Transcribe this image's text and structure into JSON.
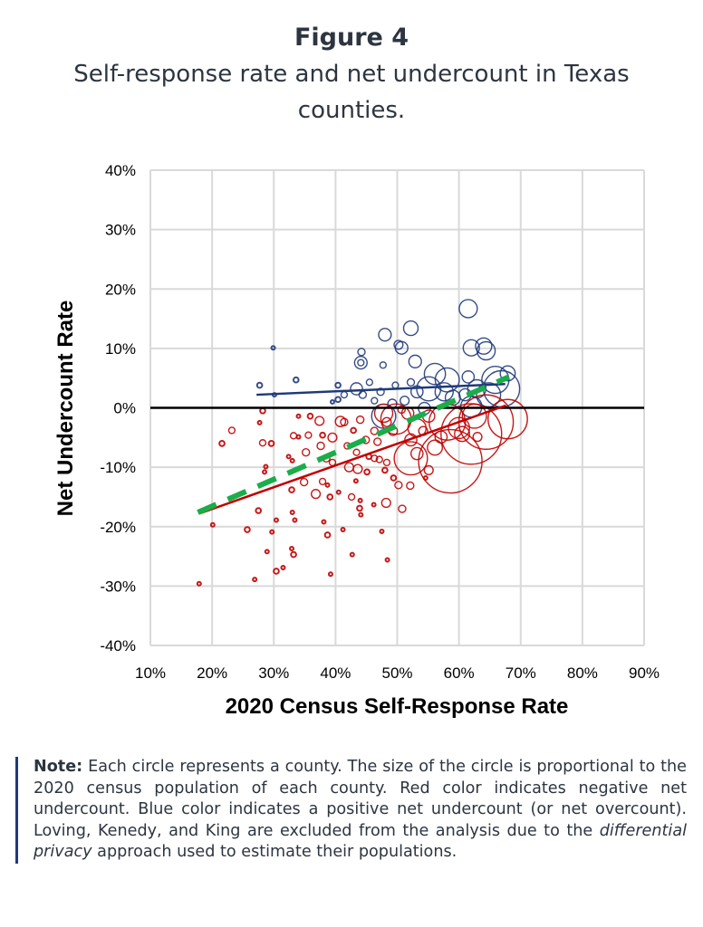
{
  "figure": {
    "label": "Figure 4",
    "subtitle": "Self-response rate and net undercount in Texas counties."
  },
  "note": {
    "label": "Note:",
    "text_before": " Each circle represents a county. The size of the circle is proportional to the 2020 census population of each county. Red color indicates negative net undercount. Blue color indicates a positive net undercount (or net overcount). Loving, Kenedy, and King are excluded from the analysis due to the ",
    "emphasis": "differential privacy",
    "text_after": " approach used to estimate their populations."
  },
  "colors": {
    "negative": "#c00000",
    "positive": "#1f3a7a",
    "overall_trend": "#1aad4a",
    "zero_line": "#000000",
    "grid": "#d9d9d9",
    "text": "#2d3540"
  },
  "chart_data": {
    "type": "scatter",
    "title": "",
    "xlabel": "2020 Census Self-Response Rate",
    "ylabel": "Net Undercount Rate",
    "xlim": [
      10,
      90
    ],
    "ylim": [
      -40,
      40
    ],
    "x_ticks": [
      "10%",
      "20%",
      "30%",
      "40%",
      "50%",
      "60%",
      "70%",
      "80%",
      "90%"
    ],
    "y_ticks": [
      "40%",
      "30%",
      "20%",
      "10%",
      "0%",
      "-10%",
      "-20%",
      "-30%",
      "-40%"
    ],
    "grid": true,
    "bubble_size": "relative county population (2020 census)",
    "point_format": [
      "self_response_rate_pct",
      "net_undercount_rate_pct",
      "relative_population"
    ],
    "series": [
      {
        "group": "positive",
        "color": "#1f3a7a",
        "points": [
          [
            61.5,
            16.7,
            25
          ],
          [
            52.2,
            13.4,
            16
          ],
          [
            48.0,
            12.3,
            12
          ],
          [
            50.7,
            10.1,
            12
          ],
          [
            50.2,
            10.6,
            6
          ],
          [
            62.0,
            10.1,
            20
          ],
          [
            64.4,
            9.6,
            25
          ],
          [
            64.0,
            10.4,
            20
          ],
          [
            44.2,
            9.4,
            4
          ],
          [
            44.1,
            7.6,
            12
          ],
          [
            44.1,
            7.6,
            3
          ],
          [
            52.9,
            7.8,
            12
          ],
          [
            47.7,
            7.2,
            3
          ],
          [
            29.9,
            10.1,
            1
          ],
          [
            27.7,
            3.8,
            2
          ],
          [
            33.6,
            4.7,
            2
          ],
          [
            40.4,
            3.8,
            2
          ],
          [
            30.1,
            2.2,
            1
          ],
          [
            39.5,
            1.0,
            1
          ],
          [
            56.1,
            5.7,
            34
          ],
          [
            58.1,
            4.7,
            44
          ],
          [
            55.1,
            3.2,
            44
          ],
          [
            66.9,
            3.2,
            100
          ],
          [
            65.9,
            4.7,
            56
          ],
          [
            61.5,
            5.2,
            11
          ],
          [
            64.8,
            2.2,
            44
          ],
          [
            47.8,
            -1.4,
            44
          ],
          [
            67.9,
            5.8,
            17
          ],
          [
            62.9,
            3.2,
            25
          ],
          [
            43.4,
            3.2,
            11
          ],
          [
            45.5,
            4.3,
            3
          ],
          [
            41.4,
            2.2,
            3
          ],
          [
            44.4,
            2.2,
            4
          ],
          [
            47.3,
            2.7,
            4
          ],
          [
            49.7,
            3.8,
            3
          ],
          [
            52.2,
            4.3,
            4
          ],
          [
            53.2,
            2.7,
            11
          ],
          [
            51.2,
            1.2,
            6
          ],
          [
            59.0,
            1.7,
            17
          ],
          [
            61.0,
            2.2,
            11
          ],
          [
            57.6,
            2.7,
            25
          ],
          [
            40.4,
            1.4,
            2
          ],
          [
            46.3,
            1.2,
            3
          ],
          [
            49.2,
            0.7,
            6
          ],
          [
            54.4,
            -0.1,
            11
          ],
          [
            62.0,
            0.2,
            34
          ]
        ]
      },
      {
        "group": "negative",
        "color": "#c00000",
        "points": [
          [
            17.9,
            -29.6,
            1
          ],
          [
            26.9,
            -28.9,
            1
          ],
          [
            30.4,
            -27.5,
            2
          ],
          [
            31.5,
            -26.9,
            1
          ],
          [
            39.2,
            -28.0,
            1
          ],
          [
            28.9,
            -24.2,
            1
          ],
          [
            33.2,
            -24.7,
            2
          ],
          [
            32.9,
            -23.7,
            1
          ],
          [
            42.7,
            -24.7,
            1
          ],
          [
            48.4,
            -25.6,
            1
          ],
          [
            25.7,
            -20.5,
            2
          ],
          [
            29.7,
            -20.9,
            1
          ],
          [
            38.7,
            -21.4,
            2
          ],
          [
            41.2,
            -20.5,
            1
          ],
          [
            47.5,
            -20.8,
            1
          ],
          [
            20.1,
            -19.7,
            1
          ],
          [
            30.4,
            -18.9,
            1
          ],
          [
            33.4,
            -18.9,
            1
          ],
          [
            38.1,
            -19.2,
            1
          ],
          [
            27.5,
            -17.3,
            2
          ],
          [
            33.0,
            -17.6,
            1
          ],
          [
            48.2,
            -16.0,
            6
          ],
          [
            50.8,
            -17.0,
            4
          ],
          [
            43.9,
            -16.9,
            2
          ],
          [
            44.1,
            -18.0,
            1
          ],
          [
            46.2,
            -16.3,
            1
          ],
          [
            36.8,
            -14.5,
            6
          ],
          [
            39.1,
            -15.0,
            2
          ],
          [
            40.5,
            -14.2,
            1
          ],
          [
            42.6,
            -15.0,
            3
          ],
          [
            44.0,
            -15.6,
            1
          ],
          [
            32.9,
            -13.8,
            2
          ],
          [
            34.9,
            -12.5,
            4
          ],
          [
            37.9,
            -12.4,
            3
          ],
          [
            38.7,
            -13.0,
            1
          ],
          [
            32.4,
            -8.2,
            1
          ],
          [
            33.0,
            -8.9,
            1
          ],
          [
            35.2,
            -7.5,
            4
          ],
          [
            28.7,
            -9.9,
            1
          ],
          [
            28.5,
            -10.8,
            1
          ],
          [
            28.2,
            -5.9,
            3
          ],
          [
            29.6,
            -6.0,
            2
          ],
          [
            21.6,
            -6.0,
            2
          ],
          [
            23.2,
            -3.8,
            3
          ],
          [
            27.7,
            -2.5,
            1
          ],
          [
            28.2,
            -0.5,
            2
          ],
          [
            34.0,
            -1.4,
            1
          ],
          [
            35.9,
            -1.4,
            2
          ],
          [
            37.4,
            -2.2,
            6
          ],
          [
            40.8,
            -2.3,
            8
          ],
          [
            41.4,
            -2.4,
            4
          ],
          [
            44.0,
            -2.0,
            4
          ],
          [
            33.2,
            -4.7,
            3
          ],
          [
            34.0,
            -4.9,
            1
          ],
          [
            35.6,
            -4.6,
            3
          ],
          [
            37.9,
            -4.6,
            2
          ],
          [
            39.5,
            -5.0,
            6
          ],
          [
            42.9,
            -3.8,
            2
          ],
          [
            37.6,
            -6.4,
            4
          ],
          [
            38.5,
            -8.5,
            4
          ],
          [
            39.5,
            -9.2,
            3
          ],
          [
            41.9,
            -6.4,
            3
          ],
          [
            43.4,
            -7.5,
            3
          ],
          [
            45.4,
            -8.2,
            2
          ],
          [
            42.2,
            -10.0,
            6
          ],
          [
            43.6,
            -10.3,
            6
          ],
          [
            45.1,
            -10.8,
            2
          ],
          [
            46.3,
            -8.5,
            3
          ],
          [
            47.1,
            -8.7,
            3
          ],
          [
            48.3,
            -9.2,
            3
          ],
          [
            48.0,
            -10.5,
            2
          ],
          [
            43.3,
            -12.3,
            1
          ],
          [
            49.4,
            -11.8,
            2
          ],
          [
            50.2,
            -13.0,
            4
          ],
          [
            52.1,
            -13.1,
            4
          ],
          [
            54.6,
            -11.8,
            1
          ],
          [
            58.6,
            -9.0,
            306
          ],
          [
            62.0,
            -4.4,
            280
          ],
          [
            64.4,
            -2.4,
            225
          ],
          [
            67.9,
            -1.9,
            118
          ],
          [
            52.2,
            -8.5,
            84
          ],
          [
            58.1,
            -2.4,
            100
          ],
          [
            49.8,
            -1.9,
            70
          ],
          [
            56.1,
            -6.7,
            17
          ],
          [
            53.2,
            -3.4,
            25
          ],
          [
            47.8,
            -0.9,
            25
          ],
          [
            60.0,
            -3.4,
            34
          ],
          [
            51.7,
            -0.9,
            11
          ],
          [
            62.5,
            -1.4,
            44
          ],
          [
            48.3,
            -2.4,
            6
          ],
          [
            49.3,
            -3.9,
            6
          ],
          [
            50.7,
            -0.3,
            4
          ],
          [
            52.2,
            -5.4,
            11
          ],
          [
            54.2,
            -3.9,
            6
          ],
          [
            55.1,
            -1.4,
            11
          ],
          [
            46.3,
            -3.9,
            4
          ],
          [
            46.8,
            -5.7,
            4
          ],
          [
            44.9,
            -5.4,
            4
          ],
          [
            53.2,
            -7.7,
            11
          ],
          [
            57.1,
            -4.9,
            11
          ],
          [
            60.5,
            -4.4,
            17
          ],
          [
            63.0,
            -4.9,
            6
          ],
          [
            55.1,
            -10.5,
            6
          ]
        ]
      }
    ],
    "trend_lines": [
      {
        "group": "positive",
        "style": "solid",
        "color": "#1f3a7a",
        "from": [
          27.2,
          2.2
        ],
        "to": [
          67.5,
          4.0
        ]
      },
      {
        "group": "negative",
        "style": "solid",
        "color": "#c00000",
        "from": [
          17.9,
          -17.8
        ],
        "to": [
          67.6,
          0.4
        ]
      },
      {
        "group": "all",
        "style": "dashed",
        "color": "#1aad4a",
        "from": [
          17.7,
          -17.6
        ],
        "to": [
          68.1,
          5.2
        ]
      }
    ],
    "reference_line_y": 0
  }
}
